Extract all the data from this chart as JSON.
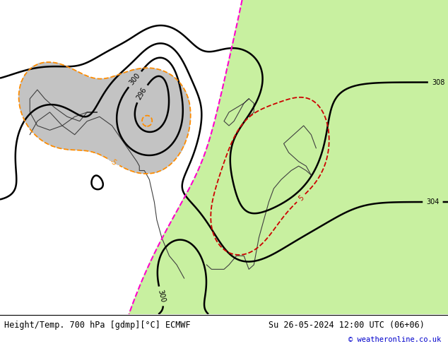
{
  "label_bottom_left": "Height/Temp. 700 hPa [gdmp][°C] ECMWF",
  "label_bottom_right": "Su 26-05-2024 12:00 UTC (06+06)",
  "copyright": "© weatheronline.co.uk",
  "fig_width": 6.34,
  "fig_height": 4.9,
  "dpi": 100,
  "green_color": "#c8f0a0",
  "gray_color": "#b4b4b4",
  "bg_color": "#e4e4e4",
  "height_color": "black",
  "orange_color": "#ff8c00",
  "red_color": "#cc0000",
  "magenta_color": "#ff00cc",
  "coast_color": "#505050",
  "border_color": "#808080"
}
